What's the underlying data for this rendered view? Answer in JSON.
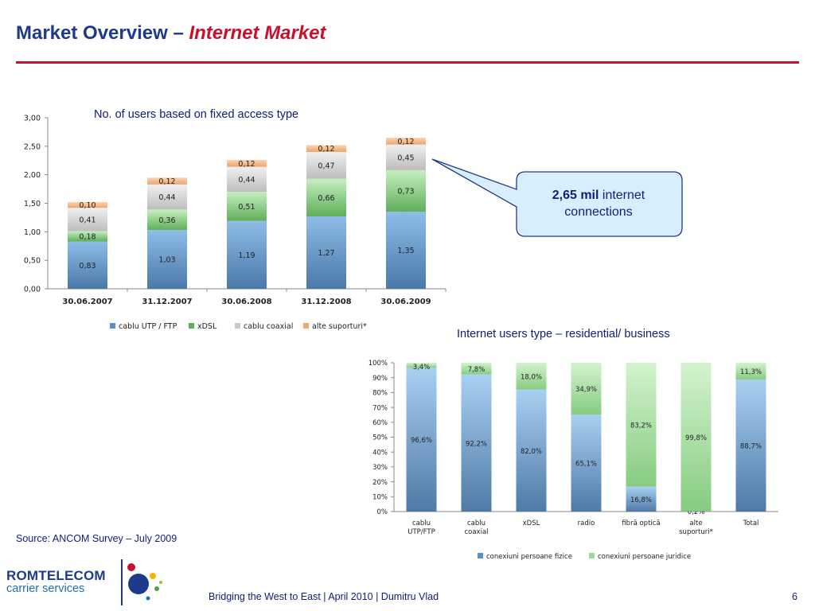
{
  "header": {
    "title_main": "Market Overview – ",
    "title_sub": "Internet Market"
  },
  "callout": {
    "strong": "2,65 mil",
    "rest": " internet connections"
  },
  "source": "Source: ANCOM Survey – July 2009",
  "footer": {
    "text": "Bridging the West to East | April 2010 | Dumitru Vlad",
    "page": "6"
  },
  "logo": {
    "name": "ROMTELECOM",
    "sub": "carrier services"
  },
  "colors": {
    "title_blue": "#1f3a8a",
    "accent_red": "#c8102e",
    "blue_series": "#5a8fc8",
    "green_series": "#9ed89a",
    "gray_series": "#d4d4d4",
    "orange_series": "#f6b582",
    "callout_fill": "#d9eefc"
  },
  "chart_data": [
    {
      "type": "bar",
      "stacked": true,
      "title": "No. of users based on fixed access type",
      "categories": [
        "30.06.2007",
        "31.12.2007",
        "30.06.2008",
        "31.12.2008",
        "30.06.2009"
      ],
      "series": [
        {
          "name": "cablu UTP / FTP",
          "values": [
            0.83,
            1.03,
            1.19,
            1.27,
            1.35
          ],
          "labels": [
            "0,83",
            "1,03",
            "1,19",
            "1,27",
            "1,35"
          ]
        },
        {
          "name": "xDSL",
          "values": [
            0.18,
            0.36,
            0.51,
            0.66,
            0.73
          ],
          "labels": [
            "0,18",
            "0,36",
            "0,51",
            "0,66",
            "0,73"
          ]
        },
        {
          "name": "cablu coaxial",
          "values": [
            0.41,
            0.44,
            0.44,
            0.47,
            0.45
          ],
          "labels": [
            "0,41",
            "0,44",
            "0,44",
            "0,47",
            "0,45"
          ]
        },
        {
          "name": "alte suporturi*",
          "values": [
            0.1,
            0.12,
            0.12,
            0.12,
            0.12
          ],
          "labels": [
            "0,10",
            "0,12",
            "0,12",
            "0,12",
            "0,12"
          ]
        }
      ],
      "yticks": [
        "0,00",
        "0,50",
        "1,00",
        "1,50",
        "2,00",
        "2,50",
        "3,00"
      ],
      "ylim": [
        0,
        3
      ],
      "grid": false,
      "legend": "bottom"
    },
    {
      "type": "bar",
      "stacked": true,
      "percent": true,
      "title": "Internet users type – residential/ business",
      "categories": [
        "cablu UTP/FTP",
        "cablu coaxial",
        "xDSL",
        "radio",
        "fibră optică",
        "alte suporturi*",
        "Total"
      ],
      "series": [
        {
          "name": "conexiuni persoane fizice",
          "values": [
            96.6,
            92.2,
            82.0,
            65.1,
            16.8,
            0.2,
            88.7
          ],
          "labels": [
            "96,6%",
            "92,2%",
            "82,0%",
            "65,1%",
            "16,8%",
            "0,2%",
            "88,7%"
          ]
        },
        {
          "name": "conexiuni persoane juridice",
          "values": [
            3.4,
            7.8,
            18.0,
            34.9,
            83.2,
            99.8,
            11.3
          ],
          "labels": [
            "3,4%",
            "7,8%",
            "18,0%",
            "34,9%",
            "83,2%",
            "99,8%",
            "11,3%"
          ]
        }
      ],
      "yticks": [
        "0%",
        "10%",
        "20%",
        "30%",
        "40%",
        "50%",
        "60%",
        "70%",
        "80%",
        "90%",
        "100%"
      ],
      "ylim": [
        0,
        100
      ],
      "grid": false,
      "legend": "bottom"
    }
  ]
}
